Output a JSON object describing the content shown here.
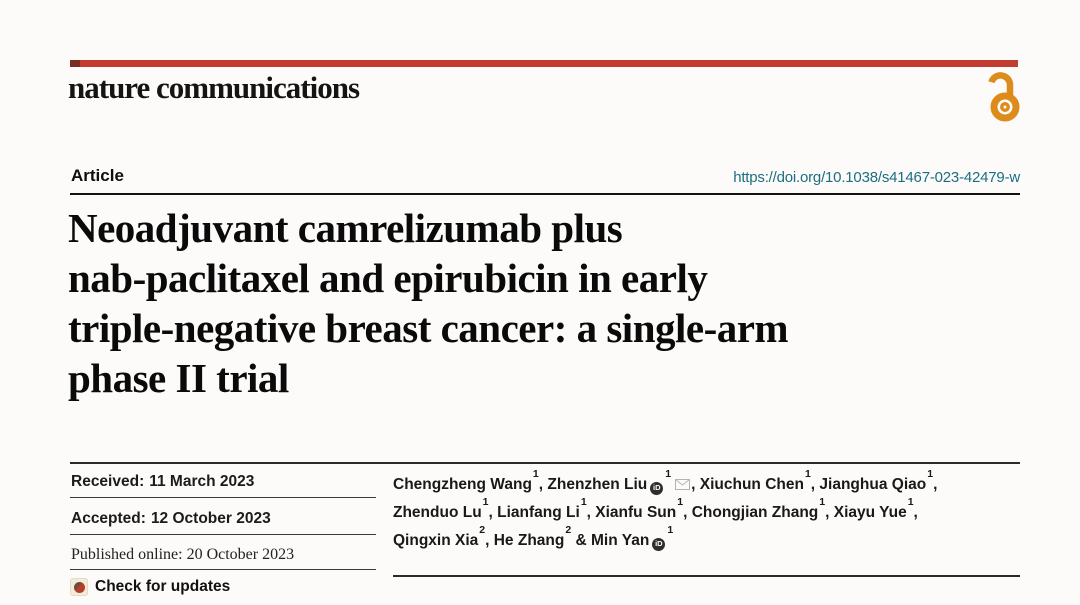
{
  "journal": {
    "name": "nature communications"
  },
  "article": {
    "kind_label": "Article",
    "doi": "https://doi.org/10.1038/s41467-023-42479-w"
  },
  "title": {
    "lines": [
      "Neoadjuvant camrelizumab plus",
      "nab-paclitaxel and epirubicin in early",
      "triple-negative breast cancer: a single-arm",
      "phase II trial"
    ]
  },
  "dates": {
    "received": {
      "label": "Received:",
      "value": "11 March 2023"
    },
    "accepted": {
      "label": "Accepted:",
      "value": "12 October 2023"
    },
    "published": {
      "label": "Published online:",
      "value": "20 October 2023"
    }
  },
  "check_for_updates": {
    "label": "Check for updates"
  },
  "authors": {
    "lines": [
      [
        {
          "name": "Chengzheng Wang",
          "sup": "1",
          "sep": ", "
        },
        {
          "name": "Zhenzhen Liu",
          "orcid": true,
          "sup": "1",
          "email": true,
          "sep": ", "
        },
        {
          "name": "Xiuchun Chen",
          "sup": "1",
          "sep": ", "
        },
        {
          "name": "Jianghua Qiao",
          "sup": "1",
          "sep": ","
        }
      ],
      [
        {
          "name": "Zhenduo Lu",
          "sup": "1",
          "sep": ", "
        },
        {
          "name": "Lianfang Li",
          "sup": "1",
          "sep": ", "
        },
        {
          "name": "Xianfu Sun",
          "sup": "1",
          "sep": ", "
        },
        {
          "name": "Chongjian Zhang",
          "sup": "1",
          "sep": ", "
        },
        {
          "name": "Xiayu Yue",
          "sup": "1",
          "sep": ","
        }
      ],
      [
        {
          "name": "Qingxin Xia",
          "sup": "2",
          "sep": ", "
        },
        {
          "name": "He Zhang",
          "sup": "2",
          "sep": " & "
        },
        {
          "name": "Min Yan",
          "orcid": true,
          "sup": "1",
          "sep": ""
        }
      ]
    ]
  },
  "icons": {
    "open_access": "open-access-padlock",
    "orcid": "orcid-id-circle",
    "orcid_text": "iD",
    "email": "envelope",
    "crossmark": "crossmark-badge"
  },
  "colors": {
    "masthead_red": "#c23b30",
    "masthead_red_dark": "#7d2b21",
    "doi_teal": "#1c6e80",
    "open_access_orange": "#dd8c1c",
    "background": "#fcfbf9"
  }
}
